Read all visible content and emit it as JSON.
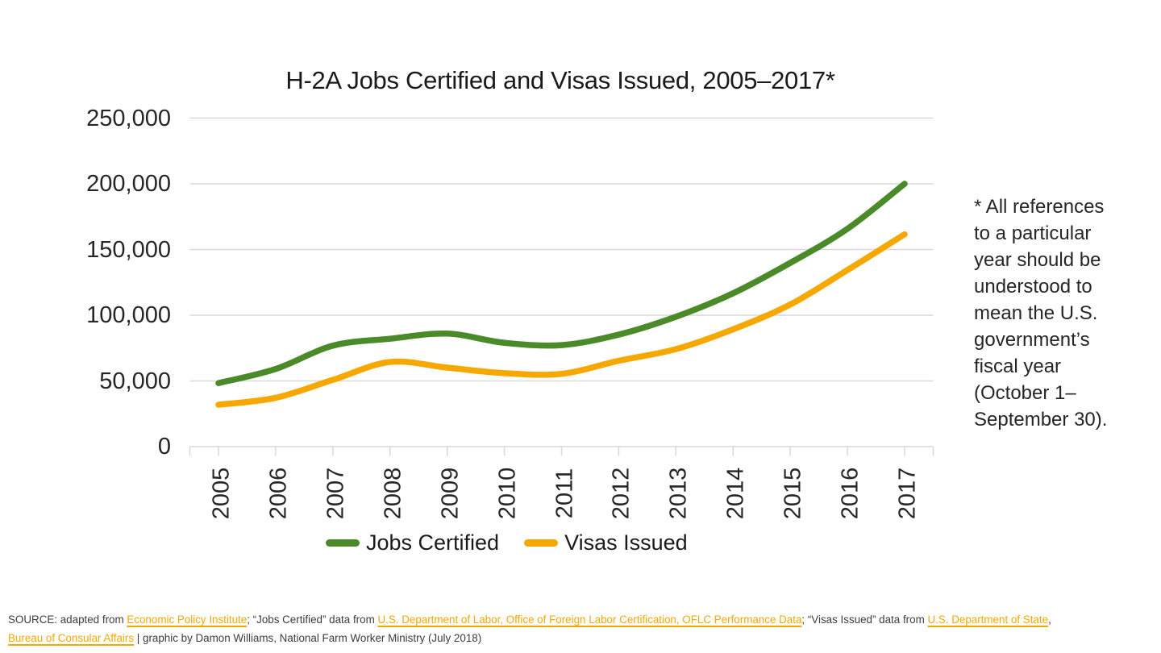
{
  "page": {
    "background": "#ffffff"
  },
  "chart_data": {
    "type": "line",
    "title": "H-2A Jobs Certified and Visas Issued, 2005–2017*",
    "categories": [
      "2005",
      "2006",
      "2007",
      "2008",
      "2009",
      "2010",
      "2011",
      "2012",
      "2013",
      "2014",
      "2015",
      "2016",
      "2017"
    ],
    "series": [
      {
        "name": "Jobs Certified",
        "color": "#4A8A28",
        "values": [
          48336,
          59110,
          76814,
          82099,
          86014,
          79011,
          77246,
          85248,
          98821,
          116689,
          139832,
          165741,
          200049
        ]
      },
      {
        "name": "Visas Issued",
        "color": "#F7A800",
        "values": [
          31892,
          37149,
          50791,
          64404,
          60112,
          55921,
          55384,
          65345,
          74192,
          89274,
          108144,
          134368,
          161583
        ]
      }
    ],
    "xlabel": "",
    "ylabel": "",
    "ylim": [
      0,
      250000
    ],
    "ytick_step": 50000,
    "ytick_labels": [
      "0",
      "50,000",
      "100,000",
      "150,000",
      "200,000",
      "250,000"
    ],
    "grid": true,
    "gridline_color": "#D9D9D9",
    "legend_position": "bottom"
  },
  "annotation": {
    "text": "* All references\nto a particular\nyear should be\nunderstood to\nmean the U.S.\ngovernment’s\nfiscal year\n(October 1–\nSeptember 30)."
  },
  "footer": {
    "link_color": "#F5A800",
    "line1": {
      "t1": "SOURCE: adapted from ",
      "link1": "Economic Policy Institute",
      "t2": "; “Jobs Certified” data from ",
      "link2": "U.S. Department of Labor, Office of Foreign Labor Certification, OFLC Performance Data",
      "t3": "; “Visas Issued” data from ",
      "link3": "U.S. Department of State",
      "t4": ","
    },
    "line2": {
      "link1": "Bureau of Consular Affairs",
      "t1": " | graphic by Damon Williams, National Farm Worker Ministry (July 2018)"
    }
  }
}
